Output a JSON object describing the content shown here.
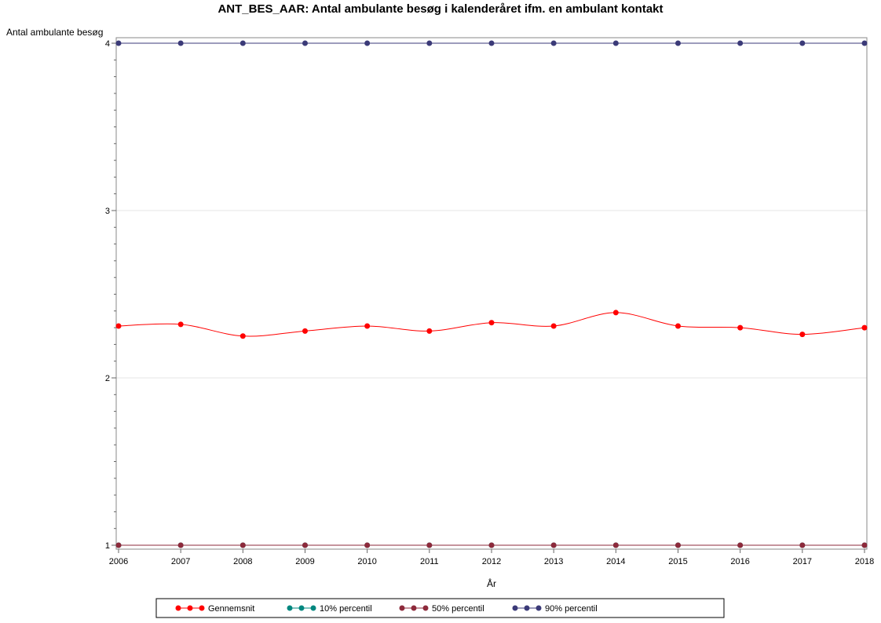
{
  "chart_data": {
    "type": "line",
    "title": "ANT_BES_AAR: Antal ambulante besøg i kalenderåret ifm. en ambulant kontakt",
    "xlabel": "År",
    "ylabel": "Antal ambulante besøg",
    "x": [
      2006,
      2007,
      2008,
      2009,
      2010,
      2011,
      2012,
      2013,
      2014,
      2015,
      2016,
      2017,
      2018
    ],
    "xlim": [
      2006,
      2018
    ],
    "ylim": [
      1,
      4
    ],
    "y_ticks": [
      1,
      2,
      3,
      4
    ],
    "grid": "horizontal",
    "legend_position": "bottom",
    "series": [
      {
        "name": "Gennemsnit",
        "color": "#ff0000",
        "smooth": true,
        "values": [
          2.31,
          2.32,
          2.25,
          2.28,
          2.31,
          2.28,
          2.33,
          2.31,
          2.39,
          2.31,
          2.3,
          2.26,
          2.3
        ]
      },
      {
        "name": "10% percentil",
        "color": "#01877f",
        "smooth": false,
        "values": [
          1,
          1,
          1,
          1,
          1,
          1,
          1,
          1,
          1,
          1,
          1,
          1,
          1
        ]
      },
      {
        "name": "50% percentil",
        "color": "#8d2a3b",
        "smooth": false,
        "values": [
          1,
          1,
          1,
          1,
          1,
          1,
          1,
          1,
          1,
          1,
          1,
          1,
          1
        ]
      },
      {
        "name": "90% percentil",
        "color": "#3b3a78",
        "smooth": false,
        "values": [
          4,
          4,
          4,
          4,
          4,
          4,
          4,
          4,
          4,
          4,
          4,
          4,
          4
        ]
      }
    ]
  }
}
